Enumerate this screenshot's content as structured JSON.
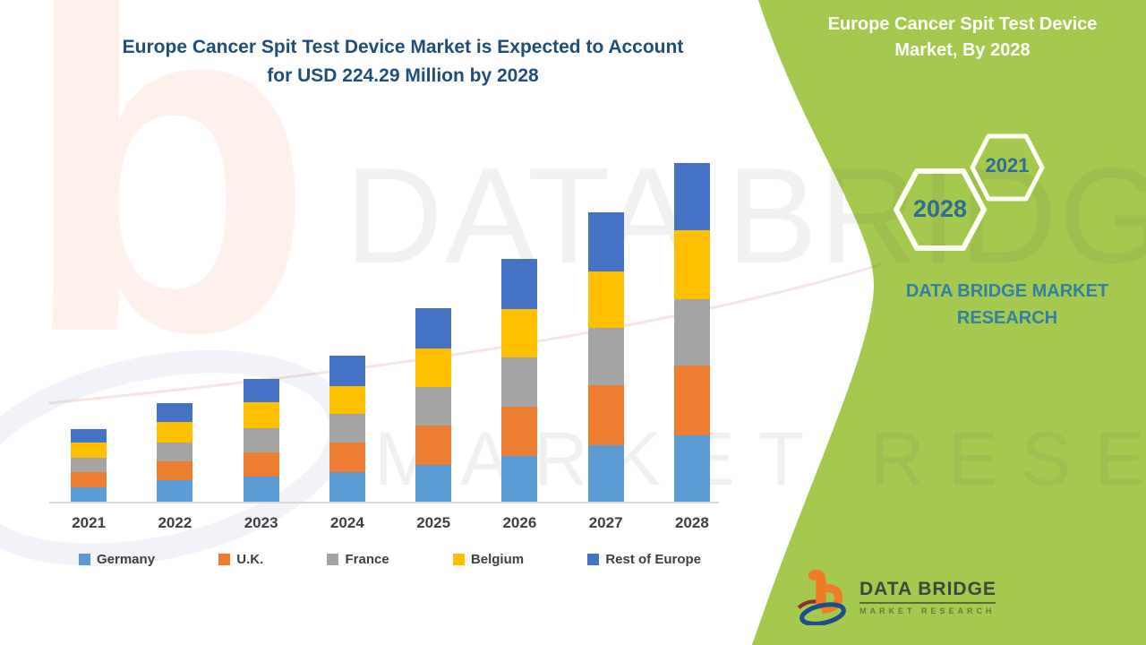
{
  "header": {
    "title_line1": "Europe Cancer Spit Test Device Market is Expected to Account",
    "title_line2": "for USD 224.29 Million by 2028"
  },
  "panel": {
    "title_line1": "Europe Cancer Spit Test Device",
    "title_line2": "Market, By 2028",
    "hex_small_year": "2021",
    "hex_large_year": "2028",
    "brand_line1": "DATA BRIDGE MARKET",
    "brand_line2": "RESEARCH",
    "bg_color": "#A5C94F",
    "year_text_color": "#2C6F94"
  },
  "chart_data": {
    "type": "bar",
    "stacked": true,
    "title": "Europe Cancer Spit Test Device Market is Expected to Account for USD 224.29 Million by 2028",
    "unit": "USD Million",
    "categories": [
      "2021",
      "2022",
      "2023",
      "2024",
      "2025",
      "2026",
      "2027",
      "2028"
    ],
    "series": [
      {
        "name": "Germany",
        "color": "#5B9BD5",
        "values": [
          9.4,
          14.0,
          16.9,
          19.6,
          24.2,
          30.2,
          37.7,
          44.1
        ]
      },
      {
        "name": "U.K.",
        "color": "#ED7D31",
        "values": [
          10.0,
          12.9,
          15.9,
          19.5,
          26.2,
          32.7,
          39.7,
          46.1
        ]
      },
      {
        "name": "France",
        "color": "#A5A5A5",
        "values": [
          9.6,
          12.5,
          15.9,
          19.2,
          25.4,
          32.7,
          37.7,
          44.1
        ]
      },
      {
        "name": "Belgium",
        "color": "#FFC000",
        "values": [
          10.4,
          13.3,
          16.9,
          18.5,
          25.4,
          31.8,
          37.7,
          45.7
        ]
      },
      {
        "name": "Rest of Europe",
        "color": "#4472C4",
        "values": [
          8.8,
          12.7,
          15.9,
          20.2,
          26.7,
          33.2,
          38.8,
          44.29
        ]
      }
    ],
    "totals_by_year": [
      48.2,
      65.4,
      81.5,
      97.0,
      127.9,
      160.6,
      191.6,
      224.29
    ],
    "annotation": "2028 total = USD 224.29 Million",
    "ylim": [
      0,
      230
    ],
    "grid": false,
    "legend_position": "bottom"
  },
  "footer_logo": {
    "name_line": "DATA BRIDGE",
    "sub_line": "MARKET RESEARCH"
  },
  "watermark": {
    "letter_b": "b",
    "big_text": "DATA BRIDGE",
    "outline_text": "MARKET RESEARCH"
  }
}
